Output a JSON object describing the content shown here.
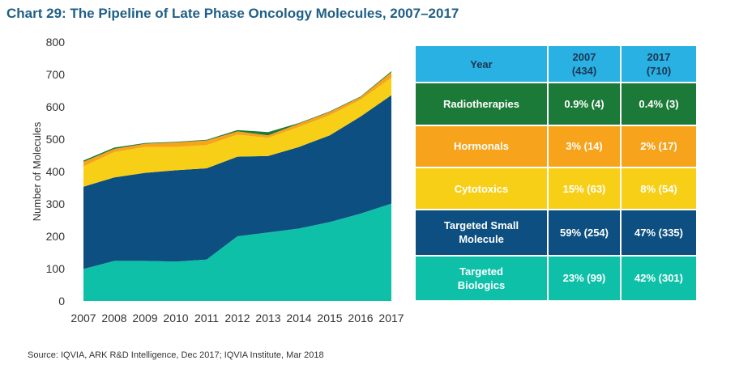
{
  "title": "Chart 29: The Pipeline of Late Phase Oncology Molecules, 2007–2017",
  "source": "Source: IQVIA, ARK R&D Intelligence, Dec 2017; IQVIA Institute, Mar 2018",
  "chart_data": {
    "type": "area",
    "stacked": true,
    "ylabel": "Number of Molecules",
    "xlabel": "",
    "ylim": [
      0,
      800
    ],
    "yticks": [
      0,
      100,
      200,
      300,
      400,
      500,
      600,
      700,
      800
    ],
    "x": [
      "2007",
      "2008",
      "2009",
      "2010",
      "2011",
      "2012",
      "2013",
      "2014",
      "2015",
      "2016",
      "2017"
    ],
    "grid": false,
    "series": [
      {
        "name": "Targeted Biologics",
        "color": "#0fc0a8",
        "values": [
          99,
          124,
          124,
          122,
          128,
          200,
          212,
          224,
          244,
          270,
          301
        ]
      },
      {
        "name": "Targeted Small Molecule",
        "color": "#0d4f80",
        "values": [
          254,
          258,
          272,
          282,
          282,
          246,
          236,
          252,
          268,
          300,
          335
        ]
      },
      {
        "name": "Cytotoxics",
        "color": "#f8cf17",
        "values": [
          63,
          78,
          80,
          72,
          72,
          68,
          56,
          62,
          62,
          52,
          54
        ]
      },
      {
        "name": "Hormonals",
        "color": "#f7a31b",
        "values": [
          14,
          10,
          10,
          14,
          14,
          10,
          8,
          10,
          10,
          8,
          17
        ]
      },
      {
        "name": "Radiotherapies",
        "color": "#1c7a38",
        "values": [
          4,
          4,
          2,
          2,
          2,
          4,
          10,
          2,
          2,
          2,
          3
        ]
      }
    ]
  },
  "table": {
    "header": {
      "label": "Year",
      "col1_line1": "2007",
      "col1_line2": "(434)",
      "col2_line1": "2017",
      "col2_line2": "(710)",
      "color": "#29b1e3"
    },
    "rows": [
      {
        "label_line1": "Radiotherapies",
        "label_line2": "",
        "v2007": "0.9% (4)",
        "v2017": "0.4% (3)",
        "color": "#1c7a38",
        "text_color": "#ffffff"
      },
      {
        "label_line1": "Hormonals",
        "label_line2": "",
        "v2007": "3% (14)",
        "v2017": "2% (17)",
        "color": "#f7a31b",
        "text_color": "#ffffff"
      },
      {
        "label_line1": "Cytotoxics",
        "label_line2": "",
        "v2007": "15% (63)",
        "v2017": "8% (54)",
        "color": "#f8cf17",
        "text_color": "#ffffff"
      },
      {
        "label_line1": "Targeted Small",
        "label_line2": "Molecule",
        "v2007": "59% (254)",
        "v2017": "47% (335)",
        "color": "#0d4f80",
        "text_color": "#ffffff"
      },
      {
        "label_line1": "Targeted",
        "label_line2": "Biologics",
        "v2007": "23% (99)",
        "v2017": "42% (301)",
        "color": "#0fc0a8",
        "text_color": "#ffffff"
      }
    ]
  }
}
